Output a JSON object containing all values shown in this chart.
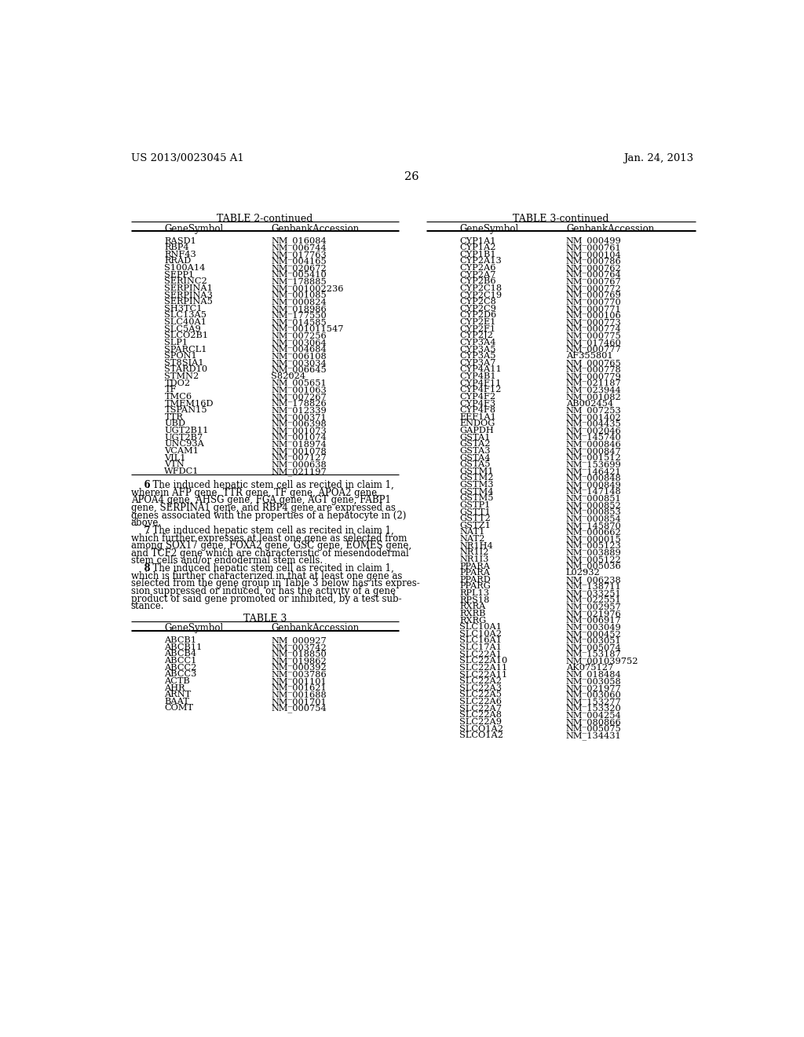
{
  "header_left": "US 2013/0023045 A1",
  "header_right": "Jan. 24, 2013",
  "page_number": "26",
  "table2_title": "TABLE 2-continued",
  "table2_headers": [
    "GeneSymbol",
    "GenbankAccession"
  ],
  "table2_data": [
    [
      "RASD1",
      "NM_016084"
    ],
    [
      "RBP4",
      "NM_006744"
    ],
    [
      "RNF43",
      "NM_017763"
    ],
    [
      "RRAD",
      "NM_004165"
    ],
    [
      "S100A14",
      "NM_020672"
    ],
    [
      "SEPP1",
      "NM_005410"
    ],
    [
      "SERINC2",
      "NM_178885"
    ],
    [
      "SERPINA1",
      "NM_001002236"
    ],
    [
      "SERPINA3",
      "NM_001085"
    ],
    [
      "SERPINA5",
      "NM_000824"
    ],
    [
      "SH3TC1",
      "NM_018986"
    ],
    [
      "SLC13A5",
      "NM_177550"
    ],
    [
      "SLC40A1",
      "NM_014585"
    ],
    [
      "SLC5A9",
      "NM_001011547"
    ],
    [
      "SLCO2B1",
      "NM_007256"
    ],
    [
      "SLP1",
      "NM_003064"
    ],
    [
      "SPARCL1",
      "NM_004684"
    ],
    [
      "SPON1",
      "NM_006108"
    ],
    [
      "ST8SIA1",
      "NM_003034"
    ],
    [
      "STARD10",
      "NM_006645"
    ],
    [
      "STMN2",
      "S82024"
    ],
    [
      "TDO2",
      "NM_005651"
    ],
    [
      "TF",
      "NM_001063"
    ],
    [
      "TMC6",
      "NM_007267"
    ],
    [
      "TMEM16D",
      "NM_178826"
    ],
    [
      "TSPAN15",
      "NM_012339"
    ],
    [
      "TTR",
      "NM_000371"
    ],
    [
      "UBD",
      "NM_006398"
    ],
    [
      "UGT2B11",
      "NM_001073"
    ],
    [
      "UGT2B7",
      "NM_001074"
    ],
    [
      "UNC93A",
      "NM_018974"
    ],
    [
      "VCAM1",
      "NM_001078"
    ],
    [
      "VIL1",
      "NM_007127"
    ],
    [
      "VTN",
      "NM_000638"
    ],
    [
      "WFDC1",
      "NM_021197"
    ]
  ],
  "table3_title": "TABLE 3-continued",
  "table3_headers": [
    "GeneSymbol",
    "GenbankAccession"
  ],
  "table3_data": [
    [
      "CYP1A1",
      "NM_000499"
    ],
    [
      "CYP1A2",
      "NM_000761"
    ],
    [
      "CYP1B1",
      "NM_000104"
    ],
    [
      "CYP2A13",
      "NM_000786"
    ],
    [
      "CYP2A6",
      "NM_000762"
    ],
    [
      "CYP2A7",
      "NM_000764"
    ],
    [
      "CYP2B6",
      "NM_000767"
    ],
    [
      "CYP2C18",
      "NM_000772"
    ],
    [
      "CYP2C19",
      "NM_000769"
    ],
    [
      "CYP2C8",
      "NM_000770"
    ],
    [
      "CYP2C9",
      "NM_000771"
    ],
    [
      "CYP2D6",
      "NM_000106"
    ],
    [
      "CYP2E1",
      "NM_000773"
    ],
    [
      "CYP2F1",
      "NM_000774"
    ],
    [
      "CYP2J2",
      "NM_000775"
    ],
    [
      "CYP3A4",
      "NM_017460"
    ],
    [
      "CYP3A5",
      "NM_000777"
    ],
    [
      "CYP3A5",
      "AF355801"
    ],
    [
      "CYP3A7",
      "NM_000765"
    ],
    [
      "CYP4A11",
      "NM_000778"
    ],
    [
      "CYP4B1",
      "NM_000779"
    ],
    [
      "CYP4F11",
      "NM_021187"
    ],
    [
      "CYP4F12",
      "NM_023944"
    ],
    [
      "CYP4F2",
      "NM_001082"
    ],
    [
      "CYP4F3",
      "AB002454"
    ],
    [
      "CYP4F8",
      "NM_007253"
    ],
    [
      "EEF1A1",
      "NM_001402"
    ],
    [
      "ENDOG",
      "NM_004435"
    ],
    [
      "GAPDH",
      "NM_002046"
    ],
    [
      "GSTA1",
      "NM_145740"
    ],
    [
      "GSTA2",
      "NM_000846"
    ],
    [
      "GSTA3",
      "NM_000847"
    ],
    [
      "GSTA4",
      "NM_001512"
    ],
    [
      "GSTA5",
      "NM_153699"
    ],
    [
      "GSTM1",
      "NM_146421"
    ],
    [
      "GSTM2",
      "NM_000848"
    ],
    [
      "GSTM3",
      "NM_000849"
    ],
    [
      "GSTM4",
      "NM_147148"
    ],
    [
      "GSTM5",
      "NM_000851"
    ],
    [
      "GSTP1",
      "NM_000852"
    ],
    [
      "GSTT1",
      "NM_000853"
    ],
    [
      "GSTT2",
      "NM_000854"
    ],
    [
      "GSTZ1",
      "NM_145870"
    ],
    [
      "NAT1",
      "NM_000662"
    ],
    [
      "NAT2",
      "NM_000015"
    ],
    [
      "NR1H4",
      "NM_005123"
    ],
    [
      "NR1I2",
      "NM_003889"
    ],
    [
      "NR1I3",
      "NM_005122"
    ],
    [
      "PPARA",
      "NM_005036"
    ],
    [
      "PPARA",
      "L02932"
    ],
    [
      "PPARD",
      "NM_006238"
    ],
    [
      "PPARG",
      "NM_138711"
    ],
    [
      "RPL13",
      "NM_033251"
    ],
    [
      "RPS18",
      "NM_022551"
    ],
    [
      "RXRA",
      "NM_002957"
    ],
    [
      "RXRB",
      "NM_021976"
    ],
    [
      "RXRG",
      "NM_006917"
    ],
    [
      "SLC10A1",
      "NM_003049"
    ],
    [
      "SLC10A2",
      "NM_000452"
    ],
    [
      "SLC16A1",
      "NM_003051"
    ],
    [
      "SLC17A1",
      "NM_005074"
    ],
    [
      "SLC22A1",
      "NM_153187"
    ],
    [
      "SLC22A10",
      "NM_001039752"
    ],
    [
      "SLC22A11",
      "AK075127"
    ],
    [
      "SLC22A11",
      "NM_018484"
    ],
    [
      "SLC22A2",
      "NM_003058"
    ],
    [
      "SLC22A3",
      "NM_021977"
    ],
    [
      "SLC22A5",
      "NM_003060"
    ],
    [
      "SLC22A6",
      "NM_153277"
    ],
    [
      "SLC22A7",
      "NM_153320"
    ],
    [
      "SLC22A8",
      "NM_004254"
    ],
    [
      "SLC22A9",
      "NM_080866"
    ],
    [
      "SLCO1A2",
      "NM_005075"
    ],
    [
      "SLCO1A2",
      "NM_134431"
    ]
  ],
  "body_paragraphs": [
    {
      "number": "6",
      "bold_part": "6",
      "text": ". The induced hepatic stem cell as recited in claim 1,\nwherein AFP gene, TTR gene, TF gene, APOA2 gene,\nAPOA4 gene, AHSG gene, FGA gene, AGT gene, FABP1\ngene, SERPINA1 gene, and RBP4 gene are expressed as\ngenes associated with the properties of a hepatocyte in (2)\nabove."
    },
    {
      "number": "7",
      "bold_part": "7",
      "text": ". The induced hepatic stem cell as recited in claim 1,\nwhich further expresses at least one gene as selected from\namong SOX17 gene, FOXA2 gene, GSC gene, EOMES gene,\nand TCF2 gene which are characteristic of mesendodermal\nstem cells and/or endodermal stem cells."
    },
    {
      "number": "8",
      "bold_part": "8",
      "text": ". The induced hepatic stem cell as recited in claim 1,\nwhich is further characterized in that at least one gene as\nselected from the gene group in Table 3 below has its expres-\nsion suppressed or induced, or has the activity of a gene\nproduct of said gene promoted or inhibited, by a test sub-\nstance."
    }
  ],
  "table3_small_title": "TABLE 3",
  "table3_small_headers": [
    "GeneSymbol",
    "GenbankAccession"
  ],
  "table3_small_data": [
    [
      "ABCB1",
      "NM_000927"
    ],
    [
      "ABCB11",
      "NM_003742"
    ],
    [
      "ABCB4",
      "NM_018850"
    ],
    [
      "ABCC1",
      "NM_019862"
    ],
    [
      "ABCC2",
      "NM_000392"
    ],
    [
      "ABCC3",
      "NM_003786"
    ],
    [
      "ACTB",
      "NM_001101"
    ],
    [
      "AHR",
      "NM_001621"
    ],
    [
      "ARNT",
      "NM_001688"
    ],
    [
      "BAAT",
      "NM_001701"
    ],
    [
      "COMT",
      "NM_000754"
    ]
  ]
}
